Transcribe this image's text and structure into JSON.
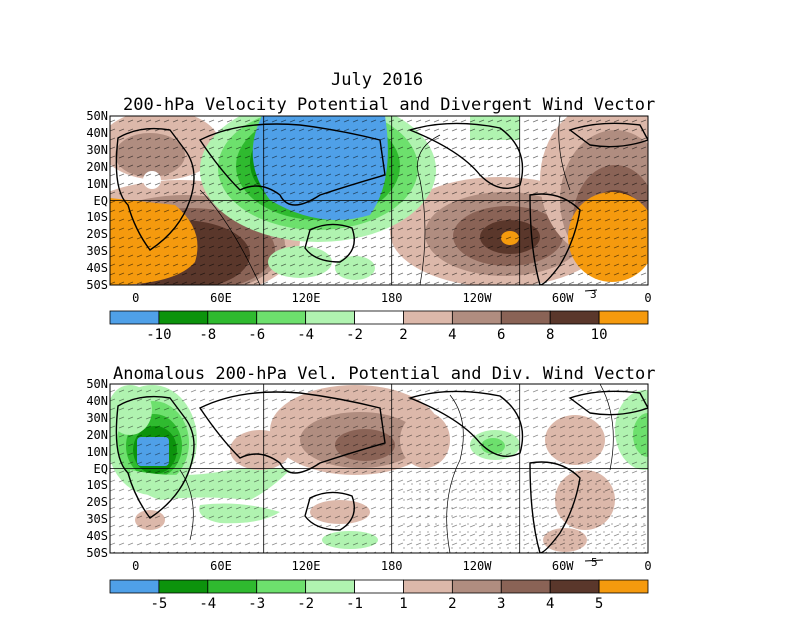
{
  "title_line1": "July 2016",
  "panels": [
    {
      "title": "200-hPa Velocity Potential and Divergent Wind Vector",
      "lat_labels": [
        "50N",
        "40N",
        "30N",
        "20N",
        "10N",
        "EQ",
        "10S",
        "20S",
        "30S",
        "40S",
        "50S"
      ],
      "lon_labels": [
        "0",
        "60E",
        "120E",
        "180",
        "120W",
        "60W",
        "0"
      ],
      "vector_ref": "3",
      "colorbar": {
        "labels": [
          "-10",
          "-8",
          "-6",
          "-4",
          "-2",
          "2",
          "4",
          "6",
          "8",
          "10"
        ],
        "colors": [
          "#4fa0e8",
          "#0c930c",
          "#2fba2f",
          "#6de06d",
          "#b0f3b0",
          "#ffffff",
          "#dcb8aa",
          "#b08d80",
          "#8a6356",
          "#5a372b",
          "#f59a0e"
        ]
      }
    },
    {
      "title": "Anomalous 200-hPa Vel. Potential and Div. Wind Vector",
      "lat_labels": [
        "50N",
        "40N",
        "30N",
        "20N",
        "10N",
        "EQ",
        "10S",
        "20S",
        "30S",
        "40S",
        "50S"
      ],
      "lon_labels": [
        "0",
        "60E",
        "120E",
        "180",
        "120W",
        "60W",
        "0"
      ],
      "vector_ref": "5",
      "colorbar": {
        "labels": [
          "-5",
          "-4",
          "-3",
          "-2",
          "-1",
          "1",
          "2",
          "3",
          "4",
          "5"
        ],
        "colors": [
          "#4fa0e8",
          "#0c930c",
          "#2fba2f",
          "#6de06d",
          "#b0f3b0",
          "#ffffff",
          "#dcb8aa",
          "#b08d80",
          "#8a6356",
          "#5a372b",
          "#f59a0e"
        ]
      }
    }
  ]
}
